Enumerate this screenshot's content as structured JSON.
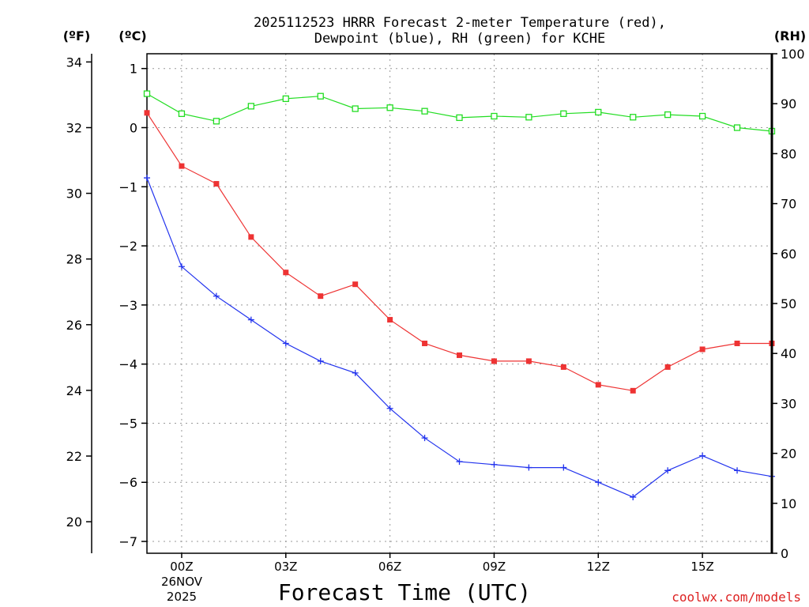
{
  "chart_data": {
    "type": "line",
    "title_line1": "2025112523 HRRR Forecast 2-meter Temperature (red),",
    "title_line2": "Dewpoint (blue), RH (green) for KCHE",
    "xlabel": "Forecast Time (UTC)",
    "date_label_day": "26NOV",
    "date_label_year": "2025",
    "credit": "coolwx.com/models",
    "left_outer_unit": "(ºF)",
    "left_inner_unit": "(ºC)",
    "right_unit": "(RH)",
    "x_hours": [
      -1,
      0,
      1,
      2,
      3,
      4,
      5,
      6,
      7,
      8,
      9,
      10,
      11,
      12,
      13,
      14,
      15,
      16,
      17
    ],
    "x_range": [
      -1,
      17
    ],
    "x_ticks": [
      {
        "hour": 0,
        "label": "00Z"
      },
      {
        "hour": 3,
        "label": "03Z"
      },
      {
        "hour": 6,
        "label": "06Z"
      },
      {
        "hour": 9,
        "label": "09Z"
      },
      {
        "hour": 12,
        "label": "12Z"
      },
      {
        "hour": 15,
        "label": "15Z"
      }
    ],
    "celsius_range": [
      -7.2,
      1.25
    ],
    "celsius_ticks": [
      "1",
      "0",
      "−1",
      "−2",
      "−3",
      "−4",
      "−5",
      "−6",
      "−7"
    ],
    "fahrenheit_ticks": [
      "34",
      "32",
      "30",
      "28",
      "26",
      "24",
      "22",
      "20"
    ],
    "rh_range": [
      0,
      100
    ],
    "rh_ticks": [
      "0",
      "10",
      "20",
      "30",
      "40",
      "50",
      "60",
      "70",
      "80",
      "90",
      "100"
    ],
    "series": [
      {
        "name": "Temperature",
        "unit": "C",
        "color": "#ee3333",
        "marker": "filled-square",
        "values": [
          0.25,
          -0.65,
          -0.95,
          -1.85,
          -2.45,
          -2.85,
          -2.65,
          -3.25,
          -3.65,
          -3.85,
          -3.95,
          -3.95,
          -4.05,
          -4.35,
          -4.45,
          -4.05,
          -3.75,
          -3.65,
          -3.65
        ]
      },
      {
        "name": "Dewpoint",
        "unit": "C",
        "color": "#2233ee",
        "marker": "plus",
        "values": [
          -0.85,
          -2.35,
          -2.85,
          -3.25,
          -3.65,
          -3.95,
          -4.15,
          -4.75,
          -5.25,
          -5.65,
          -5.7,
          -5.75,
          -5.75,
          -6.0,
          -6.25,
          -5.8,
          -5.55,
          -5.8,
          -5.9
        ]
      },
      {
        "name": "RH",
        "unit": "%",
        "color": "#22dd22",
        "marker": "open-square",
        "values": [
          92,
          88,
          86.5,
          89.5,
          91,
          91.5,
          89,
          89.2,
          88.5,
          87.2,
          87.5,
          87.3,
          88,
          88.3,
          87.3,
          87.8,
          87.5,
          85.2,
          84.5
        ]
      }
    ]
  }
}
